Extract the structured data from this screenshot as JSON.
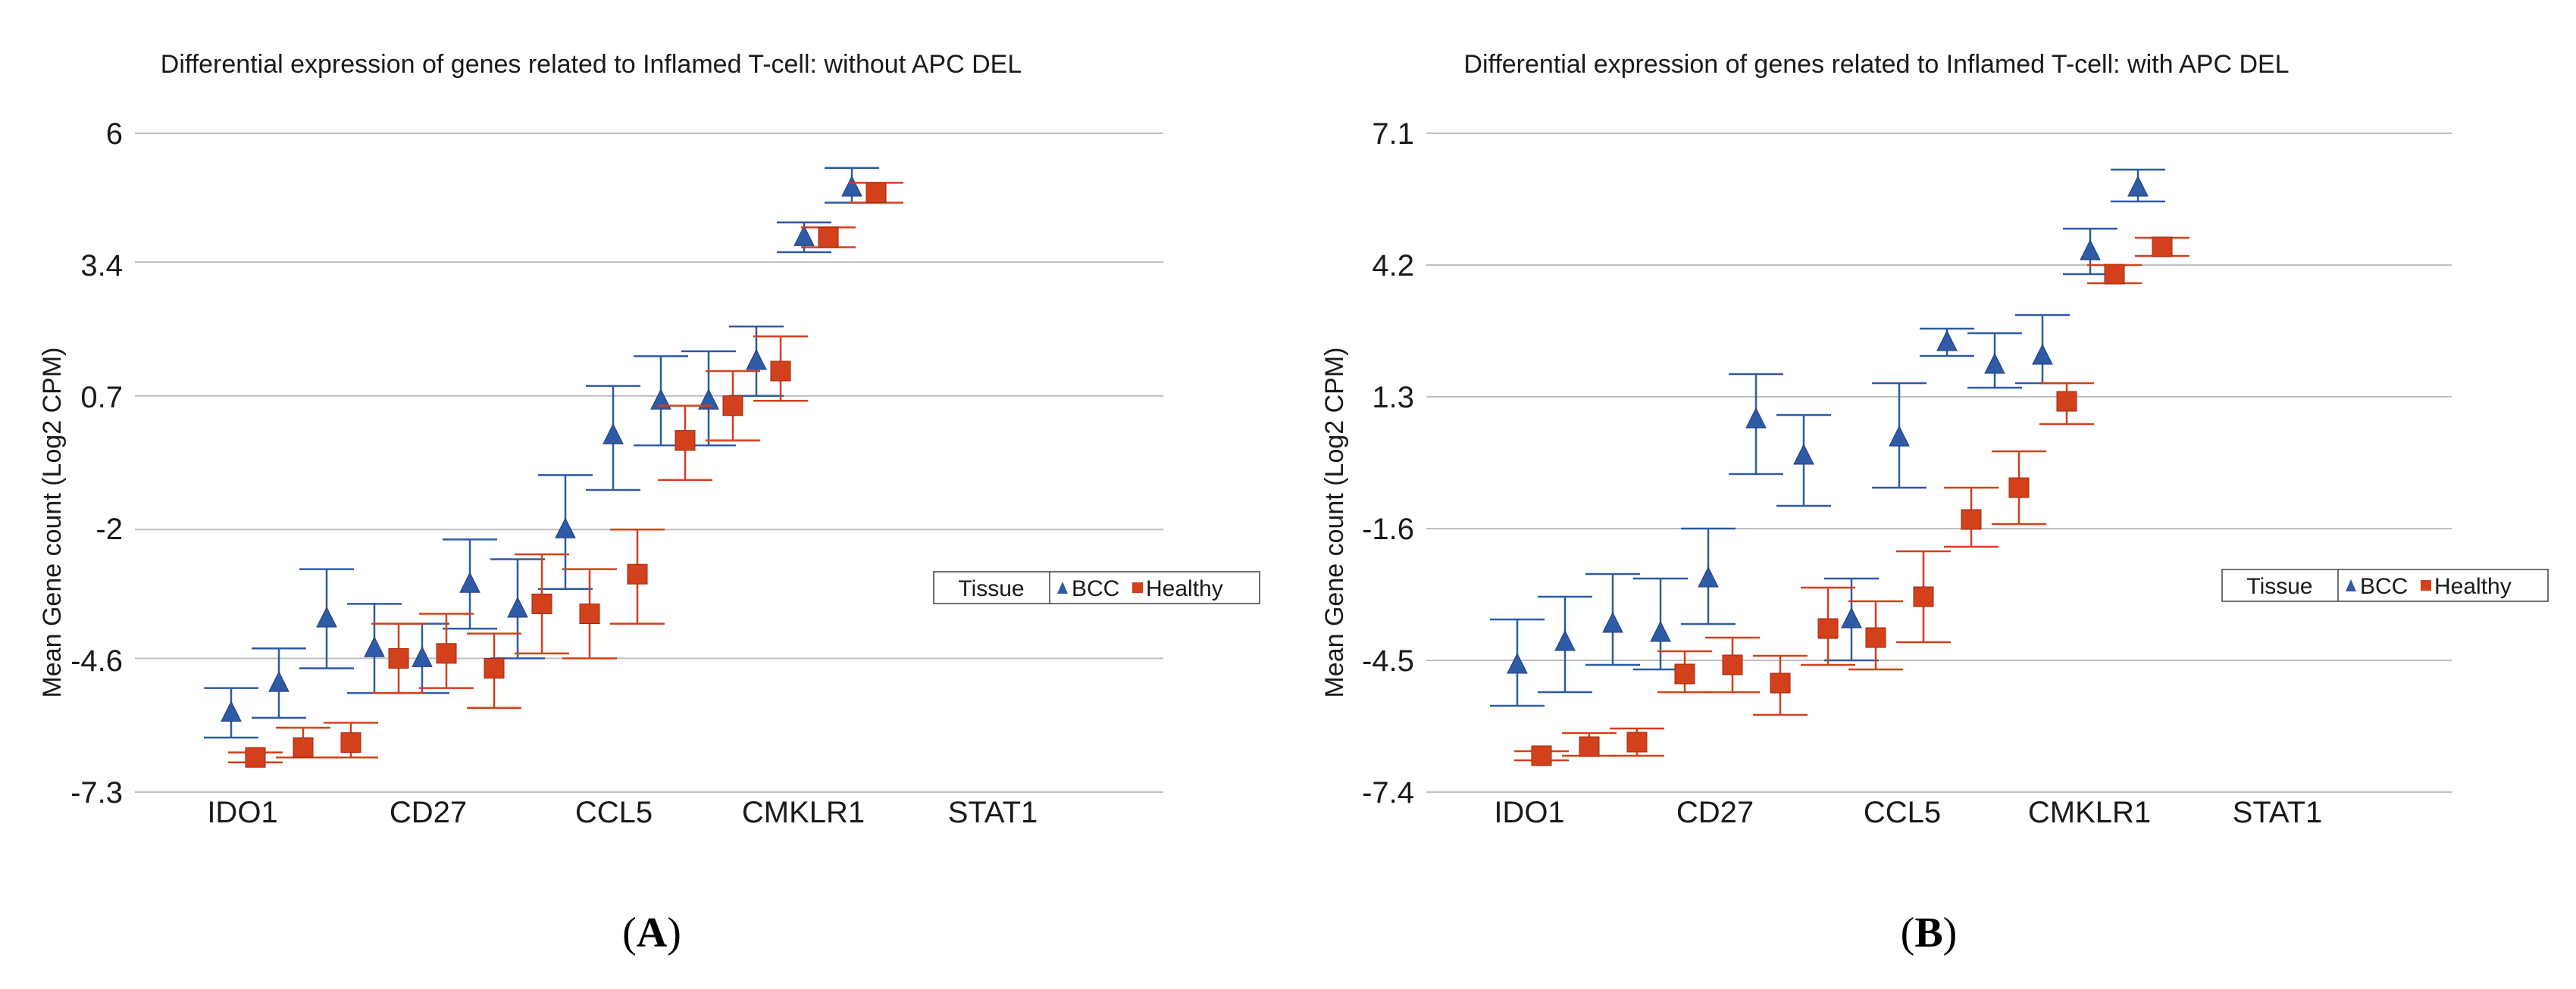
{
  "colors": {
    "bcc": "#2e5aa6",
    "healthy": "#d2401c",
    "grid": "#bfbfbf"
  },
  "chart_data": [
    {
      "type": "scatter",
      "title": "Differential expression of genes related to Inflamed T-cell: without APC DEL",
      "ylabel": "Mean Gene count (Log2 CPM)",
      "xlabel": "",
      "yticks": [
        "6",
        "3.4",
        "0.7",
        "-2",
        "-4.6",
        "-7.3"
      ],
      "ylim": [
        -7.3,
        6
      ],
      "x_labels": [
        "IDO1",
        "CD27",
        "CCL5",
        "CMKLR1",
        "STAT1"
      ],
      "legend": {
        "title": "Tissue",
        "entries": [
          "BCC",
          "Healthy"
        ]
      },
      "panel_label": {
        "open": "(",
        "letter": "A",
        "close": ")"
      },
      "series": [
        {
          "name": "BCC",
          "marker": "triangle",
          "points": [
            {
              "mean": -5.7,
              "lo": -6.2,
              "hi": -5.2
            },
            {
              "mean": -5.1,
              "lo": -5.8,
              "hi": -4.4
            },
            {
              "mean": -3.8,
              "lo": -4.8,
              "hi": -2.8
            },
            {
              "mean": -4.4,
              "lo": -5.3,
              "hi": -3.5
            },
            {
              "mean": -4.6,
              "lo": -5.3,
              "hi": -3.9
            },
            {
              "mean": -3.1,
              "lo": -4.0,
              "hi": -2.2
            },
            {
              "mean": -3.6,
              "lo": -4.6,
              "hi": -2.6
            },
            {
              "mean": -2.0,
              "lo": -3.2,
              "hi": -0.9
            },
            {
              "mean": -0.1,
              "lo": -1.2,
              "hi": 0.9
            },
            {
              "mean": 0.6,
              "lo": -0.3,
              "hi": 1.5
            },
            {
              "mean": 0.6,
              "lo": -0.3,
              "hi": 1.6
            },
            {
              "mean": 1.4,
              "lo": 0.7,
              "hi": 2.1
            },
            {
              "mean": 3.9,
              "lo": 3.6,
              "hi": 4.2
            },
            {
              "mean": 4.9,
              "lo": 4.6,
              "hi": 5.3
            }
          ]
        },
        {
          "name": "Healthy",
          "marker": "square",
          "points": [
            {
              "mean": -6.6,
              "lo": -6.7,
              "hi": -6.5
            },
            {
              "mean": -6.4,
              "lo": -6.6,
              "hi": -6.0
            },
            {
              "mean": -6.3,
              "lo": -6.6,
              "hi": -5.9
            },
            {
              "mean": -4.6,
              "lo": -5.3,
              "hi": -3.9
            },
            {
              "mean": -4.5,
              "lo": -5.2,
              "hi": -3.7
            },
            {
              "mean": -4.8,
              "lo": -5.6,
              "hi": -4.1
            },
            {
              "mean": -3.5,
              "lo": -4.5,
              "hi": -2.5
            },
            {
              "mean": -3.7,
              "lo": -4.6,
              "hi": -2.8
            },
            {
              "mean": -2.9,
              "lo": -3.9,
              "hi": -2.0
            },
            {
              "mean": -0.2,
              "lo": -1.0,
              "hi": 0.5
            },
            {
              "mean": 0.5,
              "lo": -0.2,
              "hi": 1.2
            },
            {
              "mean": 1.2,
              "lo": 0.6,
              "hi": 1.9
            },
            {
              "mean": 3.9,
              "lo": 3.7,
              "hi": 4.1
            },
            {
              "mean": 4.8,
              "lo": 4.6,
              "hi": 5.0
            }
          ]
        }
      ]
    },
    {
      "type": "scatter",
      "title": "Differential expression of genes related to Inflamed T-cell: with APC DEL",
      "ylabel": "Mean Gene count (Log2 CPM)",
      "xlabel": "",
      "yticks": [
        "7.1",
        "4.2",
        "1.3",
        "-1.6",
        "-4.5",
        "-7.4"
      ],
      "ylim": [
        -7.4,
        7.1
      ],
      "x_labels": [
        "IDO1",
        "CD27",
        "CCL5",
        "CMKLR1",
        "STAT1"
      ],
      "legend": {
        "title": "Tissue",
        "entries": [
          "BCC",
          "Healthy"
        ]
      },
      "panel_label": {
        "open": "(",
        "letter": "B",
        "close": ")"
      },
      "series": [
        {
          "name": "BCC",
          "marker": "triangle",
          "points": [
            {
              "mean": -4.6,
              "lo": -5.5,
              "hi": -3.6
            },
            {
              "mean": -4.1,
              "lo": -5.2,
              "hi": -3.1
            },
            {
              "mean": -3.7,
              "lo": -4.6,
              "hi": -2.6
            },
            {
              "mean": -3.9,
              "lo": -4.7,
              "hi": -2.7
            },
            {
              "mean": -2.7,
              "lo": -3.7,
              "hi": -1.6
            },
            {
              "mean": 0.8,
              "lo": -0.4,
              "hi": 1.8
            },
            {
              "mean": 0.0,
              "lo": -1.1,
              "hi": 0.9
            },
            {
              "mean": -3.6,
              "lo": -4.5,
              "hi": -2.7
            },
            {
              "mean": 0.4,
              "lo": -0.7,
              "hi": 1.6
            },
            {
              "mean": 2.5,
              "lo": 2.2,
              "hi": 2.8
            },
            {
              "mean": 2.0,
              "lo": 1.5,
              "hi": 2.7
            },
            {
              "mean": 2.2,
              "lo": 1.6,
              "hi": 3.1
            },
            {
              "mean": 4.5,
              "lo": 4.0,
              "hi": 5.0
            },
            {
              "mean": 5.9,
              "lo": 5.6,
              "hi": 6.3
            }
          ]
        },
        {
          "name": "Healthy",
          "marker": "square",
          "points": [
            {
              "mean": -6.6,
              "lo": -6.7,
              "hi": -6.5
            },
            {
              "mean": -6.4,
              "lo": -6.6,
              "hi": -6.1
            },
            {
              "mean": -6.3,
              "lo": -6.6,
              "hi": -6.0
            },
            {
              "mean": -4.8,
              "lo": -5.2,
              "hi": -4.3
            },
            {
              "mean": -4.6,
              "lo": -5.2,
              "hi": -4.0
            },
            {
              "mean": -5.0,
              "lo": -5.7,
              "hi": -4.4
            },
            {
              "mean": -3.8,
              "lo": -4.6,
              "hi": -2.9
            },
            {
              "mean": -4.0,
              "lo": -4.7,
              "hi": -3.2
            },
            {
              "mean": -3.1,
              "lo": -4.1,
              "hi": -2.1
            },
            {
              "mean": -1.4,
              "lo": -2.0,
              "hi": -0.7
            },
            {
              "mean": -0.7,
              "lo": -1.5,
              "hi": 0.1
            },
            {
              "mean": 1.2,
              "lo": 0.7,
              "hi": 1.6
            },
            {
              "mean": 4.0,
              "lo": 3.8,
              "hi": 4.2
            },
            {
              "mean": 4.6,
              "lo": 4.4,
              "hi": 4.8
            }
          ]
        }
      ]
    }
  ]
}
